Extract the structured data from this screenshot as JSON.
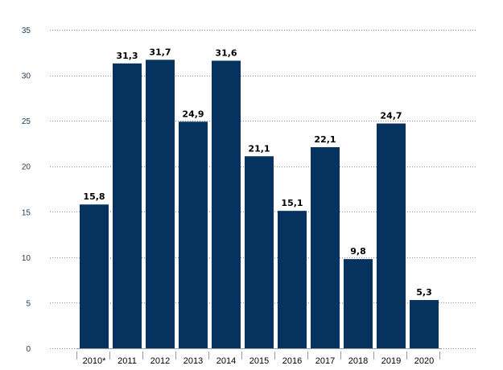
{
  "chart_data": {
    "type": "bar",
    "title": "",
    "xlabel": "",
    "ylabel": "",
    "ylim": [
      0,
      35
    ],
    "yticks": [
      0,
      5,
      10,
      15,
      20,
      25,
      30,
      35
    ],
    "grid": true,
    "bar_color": "#06325f",
    "categories": [
      "2010*",
      "2011",
      "2012",
      "2013",
      "2014",
      "2015",
      "2016",
      "2017",
      "2018",
      "2019",
      "2020"
    ],
    "values": [
      15.8,
      31.3,
      31.7,
      24.9,
      31.6,
      21.1,
      15.1,
      22.1,
      9.8,
      24.7,
      5.3
    ],
    "value_labels": [
      "15,8",
      "31,3",
      "31,7",
      "24,9",
      "31,6",
      "21,1",
      "15,1",
      "22,1",
      "9,8",
      "24,7",
      "5,3"
    ]
  }
}
